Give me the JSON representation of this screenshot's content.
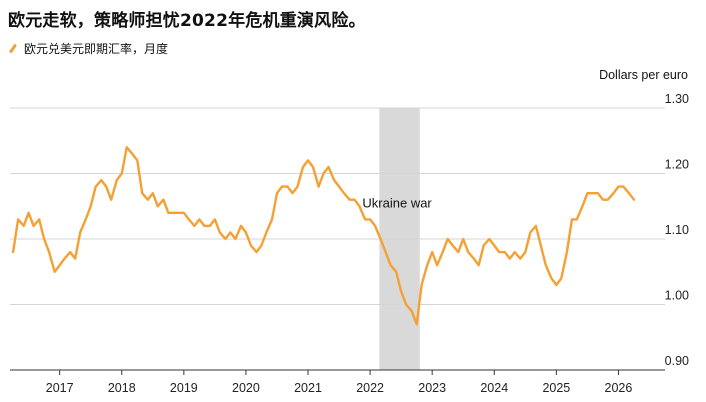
{
  "title": "欧元走软，策略师担忧2022年危机重演风险。",
  "legend": {
    "label": "欧元兑美元即期汇率，月度",
    "color": "#f5a033"
  },
  "chart_data": {
    "type": "line",
    "y_unit_label": "Dollars per euro",
    "ylim": [
      0.9,
      1.3
    ],
    "yticks": [
      0.9,
      1.0,
      1.1,
      1.2,
      1.3
    ],
    "ytick_labels": [
      "0.90",
      "1.00",
      "1.10",
      "1.20",
      "1.30"
    ],
    "xlim": [
      2016.2,
      2026.75
    ],
    "xticks": [
      2017,
      2018,
      2019,
      2020,
      2021,
      2022,
      2023,
      2024,
      2025,
      2026
    ],
    "xtick_labels": [
      "2017",
      "2018",
      "2019",
      "2020",
      "2021",
      "2022",
      "2023",
      "2024",
      "2025",
      "2026"
    ],
    "grid": true,
    "shaded_region": {
      "label": "Ukraine war",
      "x_start": 2022.15,
      "x_end": 2022.8,
      "color": "#d9d9d9"
    },
    "series": [
      {
        "color": "#f5a033",
        "x": [
          2016.25,
          2016.33,
          2016.42,
          2016.5,
          2016.58,
          2016.67,
          2016.75,
          2016.83,
          2016.92,
          2017.0,
          2017.08,
          2017.17,
          2017.25,
          2017.33,
          2017.42,
          2017.5,
          2017.58,
          2017.67,
          2017.75,
          2017.83,
          2017.92,
          2018.0,
          2018.08,
          2018.17,
          2018.25,
          2018.33,
          2018.42,
          2018.5,
          2018.58,
          2018.67,
          2018.75,
          2018.83,
          2018.92,
          2019.0,
          2019.08,
          2019.17,
          2019.25,
          2019.33,
          2019.42,
          2019.5,
          2019.58,
          2019.67,
          2019.75,
          2019.83,
          2019.92,
          2020.0,
          2020.08,
          2020.17,
          2020.25,
          2020.33,
          2020.42,
          2020.5,
          2020.58,
          2020.67,
          2020.75,
          2020.83,
          2020.92,
          2021.0,
          2021.08,
          2021.17,
          2021.25,
          2021.33,
          2021.42,
          2021.5,
          2021.58,
          2021.67,
          2021.75,
          2021.83,
          2021.92,
          2022.0,
          2022.08,
          2022.17,
          2022.25,
          2022.33,
          2022.42,
          2022.5,
          2022.58,
          2022.67,
          2022.75,
          2022.83,
          2022.92,
          2023.0,
          2023.08,
          2023.17,
          2023.25,
          2023.33,
          2023.42,
          2023.5,
          2023.58,
          2023.67,
          2023.75,
          2023.83,
          2023.92,
          2024.0,
          2024.08,
          2024.17,
          2024.25,
          2024.33,
          2024.42,
          2024.5,
          2024.58,
          2024.67,
          2024.75,
          2024.83,
          2024.92,
          2025.0,
          2025.08,
          2025.17,
          2025.25,
          2025.33,
          2025.42,
          2025.5,
          2025.58,
          2025.67,
          2025.75,
          2025.83,
          2025.92,
          2026.0,
          2026.08,
          2026.17,
          2026.25
        ],
        "y": [
          1.08,
          1.13,
          1.12,
          1.14,
          1.12,
          1.13,
          1.1,
          1.08,
          1.05,
          1.06,
          1.07,
          1.08,
          1.07,
          1.11,
          1.13,
          1.15,
          1.18,
          1.19,
          1.18,
          1.16,
          1.19,
          1.2,
          1.24,
          1.23,
          1.22,
          1.17,
          1.16,
          1.17,
          1.15,
          1.16,
          1.14,
          1.14,
          1.14,
          1.14,
          1.13,
          1.12,
          1.13,
          1.12,
          1.12,
          1.13,
          1.11,
          1.1,
          1.11,
          1.1,
          1.12,
          1.11,
          1.09,
          1.08,
          1.09,
          1.11,
          1.13,
          1.17,
          1.18,
          1.18,
          1.17,
          1.18,
          1.21,
          1.22,
          1.21,
          1.18,
          1.2,
          1.21,
          1.19,
          1.18,
          1.17,
          1.16,
          1.16,
          1.15,
          1.13,
          1.13,
          1.12,
          1.1,
          1.08,
          1.06,
          1.05,
          1.02,
          1.0,
          0.99,
          0.97,
          1.03,
          1.06,
          1.08,
          1.06,
          1.08,
          1.1,
          1.09,
          1.08,
          1.1,
          1.08,
          1.07,
          1.06,
          1.09,
          1.1,
          1.09,
          1.08,
          1.08,
          1.07,
          1.08,
          1.07,
          1.08,
          1.11,
          1.12,
          1.09,
          1.06,
          1.04,
          1.03,
          1.04,
          1.08,
          1.13,
          1.13,
          1.15,
          1.17,
          1.17,
          1.17,
          1.16,
          1.16,
          1.17,
          1.18,
          1.18,
          1.17,
          1.16
        ]
      }
    ]
  }
}
